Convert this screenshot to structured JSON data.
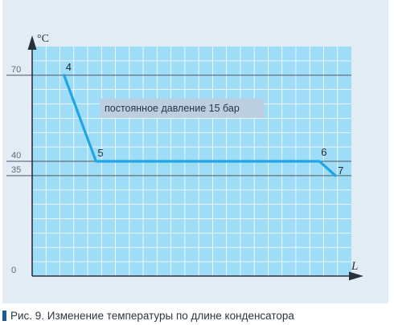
{
  "chart_data": {
    "type": "line",
    "ylabel": "°C",
    "xlabel": "L",
    "ylim": [
      0,
      80
    ],
    "grid": true,
    "y_ticks": [
      "0",
      "35",
      "40",
      "70"
    ],
    "y_tick_values": [
      0,
      35,
      40,
      70
    ],
    "annotation": "постоянное давление 15 бар",
    "series": [
      {
        "points": [
          {
            "label": "4",
            "x": 1,
            "y": 70
          },
          {
            "label": "5",
            "x": 2,
            "y": 40
          },
          {
            "label": "6",
            "x": 9,
            "y": 40
          },
          {
            "label": "7",
            "x": 9.5,
            "y": 35
          }
        ]
      }
    ]
  },
  "caption": "Рис. 9. Изменение температуры по длине конденсатора",
  "colors": {
    "panel_background": "#e2ecf4",
    "plot_background": "#9fdcf7",
    "grid": "#ffffff",
    "line": "#1ea7e4",
    "caption_marker": "#1c5a9c"
  }
}
